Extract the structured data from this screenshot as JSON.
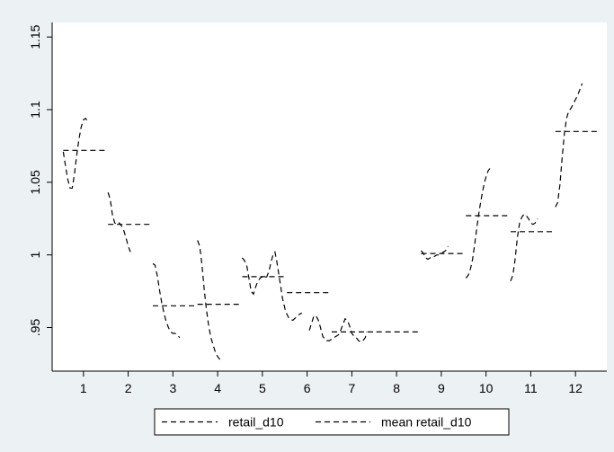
{
  "chart_data": {
    "type": "line",
    "title": "",
    "xlabel": "",
    "ylabel": "",
    "xlim": [
      0.3,
      12.7
    ],
    "ylim": [
      0.92,
      1.16
    ],
    "x_ticks": [
      1,
      2,
      3,
      4,
      5,
      6,
      7,
      8,
      9,
      10,
      11,
      12
    ],
    "x_tick_labels": [
      "1",
      "2",
      "3",
      "4",
      "5",
      "6",
      "7",
      "8",
      "9",
      "10",
      "11",
      "12"
    ],
    "y_ticks": [
      0.95,
      1,
      1.05,
      1.1,
      1.15
    ],
    "y_tick_labels": [
      ".95",
      "1",
      "1.05",
      "1.1",
      "1.15"
    ],
    "grid": false,
    "legend_position": "bottom",
    "series": [
      {
        "name": "retail_d10",
        "style": "dashed",
        "color": "#000000",
        "segments": [
          [
            [
              0.55,
              1.071
            ],
            [
              0.6,
              1.061
            ],
            [
              0.65,
              1.052
            ],
            [
              0.7,
              1.046
            ],
            [
              0.75,
              1.046
            ],
            [
              0.8,
              1.056
            ],
            [
              0.85,
              1.069
            ],
            [
              0.9,
              1.08
            ],
            [
              0.95,
              1.088
            ],
            [
              1.0,
              1.093
            ],
            [
              1.05,
              1.094
            ],
            [
              1.09,
              1.092
            ]
          ],
          [
            [
              1.55,
              1.043
            ],
            [
              1.6,
              1.038
            ],
            [
              1.65,
              1.027
            ],
            [
              1.7,
              1.022
            ],
            [
              1.75,
              1.021
            ],
            [
              1.8,
              1.022
            ],
            [
              1.85,
              1.02
            ],
            [
              1.9,
              1.017
            ],
            [
              1.95,
              1.012
            ],
            [
              2.0,
              1.006
            ],
            [
              2.05,
              1.002
            ]
          ],
          [
            [
              2.55,
              0.994
            ],
            [
              2.6,
              0.993
            ],
            [
              2.65,
              0.986
            ],
            [
              2.7,
              0.976
            ],
            [
              2.75,
              0.967
            ],
            [
              2.8,
              0.96
            ],
            [
              2.85,
              0.954
            ],
            [
              2.9,
              0.95
            ],
            [
              2.95,
              0.947
            ],
            [
              3.0,
              0.946
            ],
            [
              3.05,
              0.946
            ],
            [
              3.1,
              0.945
            ],
            [
              3.15,
              0.943
            ]
          ],
          [
            [
              3.55,
              1.01
            ],
            [
              3.6,
              1.006
            ],
            [
              3.65,
              0.993
            ],
            [
              3.7,
              0.976
            ],
            [
              3.75,
              0.962
            ],
            [
              3.8,
              0.951
            ],
            [
              3.85,
              0.943
            ],
            [
              3.9,
              0.938
            ],
            [
              3.95,
              0.933
            ],
            [
              4.0,
              0.93
            ],
            [
              4.05,
              0.928
            ]
          ],
          [
            [
              4.55,
              0.998
            ],
            [
              4.6,
              0.996
            ],
            [
              4.65,
              0.993
            ],
            [
              4.7,
              0.984
            ],
            [
              4.75,
              0.975
            ],
            [
              4.8,
              0.973
            ],
            [
              4.85,
              0.978
            ],
            [
              4.9,
              0.982
            ],
            [
              4.95,
              0.984
            ],
            [
              5.0,
              0.985
            ],
            [
              5.05,
              0.984
            ],
            [
              5.1,
              0.985
            ],
            [
              5.15,
              0.989
            ],
            [
              5.2,
              0.996
            ],
            [
              5.25,
              1.001
            ],
            [
              5.28,
              1.002
            ],
            [
              5.32,
              0.996
            ],
            [
              5.38,
              0.984
            ],
            [
              5.45,
              0.97
            ],
            [
              5.52,
              0.961
            ],
            [
              5.6,
              0.956
            ],
            [
              5.68,
              0.955
            ],
            [
              5.75,
              0.957
            ],
            [
              5.82,
              0.959
            ],
            [
              5.88,
              0.96
            ]
          ],
          [
            [
              6.05,
              0.948
            ],
            [
              6.1,
              0.953
            ],
            [
              6.15,
              0.958
            ],
            [
              6.2,
              0.958
            ],
            [
              6.25,
              0.955
            ],
            [
              6.3,
              0.95
            ],
            [
              6.35,
              0.944
            ],
            [
              6.42,
              0.941
            ],
            [
              6.5,
              0.941
            ],
            [
              6.55,
              0.942
            ],
            [
              6.6,
              0.943
            ],
            [
              6.7,
              0.945
            ],
            [
              6.75,
              0.948
            ],
            [
              6.8,
              0.952
            ],
            [
              6.85,
              0.956
            ],
            [
              6.9,
              0.955
            ],
            [
              6.95,
              0.951
            ],
            [
              7.0,
              0.946
            ],
            [
              7.05,
              0.944
            ],
            [
              7.1,
              0.943
            ],
            [
              7.15,
              0.941
            ],
            [
              7.2,
              0.94
            ],
            [
              7.25,
              0.941
            ],
            [
              7.3,
              0.943
            ],
            [
              7.33,
              0.947
            ]
          ],
          [
            [
              8.55,
              1.003
            ],
            [
              8.6,
              1.001
            ],
            [
              8.65,
              0.998
            ],
            [
              8.7,
              0.997
            ],
            [
              8.75,
              0.998
            ],
            [
              8.8,
              0.999
            ],
            [
              8.85,
              0.999
            ],
            [
              8.9,
              1.0
            ],
            [
              8.95,
              1.0
            ],
            [
              9.0,
              1.001
            ],
            [
              9.05,
              1.002
            ],
            [
              9.1,
              1.003
            ],
            [
              9.15,
              1.006
            ]
          ],
          [
            [
              9.55,
              0.984
            ],
            [
              9.6,
              0.986
            ],
            [
              9.65,
              0.99
            ],
            [
              9.7,
              0.997
            ],
            [
              9.75,
              1.008
            ],
            [
              9.8,
              1.02
            ],
            [
              9.85,
              1.031
            ],
            [
              9.9,
              1.04
            ],
            [
              9.95,
              1.048
            ],
            [
              10.0,
              1.054
            ],
            [
              10.05,
              1.058
            ],
            [
              10.1,
              1.06
            ],
            [
              10.15,
              1.061
            ]
          ],
          [
            [
              10.55,
              0.982
            ],
            [
              10.6,
              0.986
            ],
            [
              10.65,
              0.997
            ],
            [
              10.7,
              1.012
            ],
            [
              10.75,
              1.022
            ],
            [
              10.8,
              1.026
            ],
            [
              10.85,
              1.028
            ],
            [
              10.9,
              1.027
            ],
            [
              10.95,
              1.025
            ],
            [
              11.0,
              1.022
            ],
            [
              11.05,
              1.021
            ],
            [
              11.1,
              1.022
            ],
            [
              11.15,
              1.025
            ]
          ],
          [
            [
              11.55,
              1.033
            ],
            [
              11.6,
              1.036
            ],
            [
              11.65,
              1.048
            ],
            [
              11.7,
              1.066
            ],
            [
              11.75,
              1.083
            ],
            [
              11.8,
              1.094
            ],
            [
              11.85,
              1.099
            ],
            [
              11.9,
              1.101
            ],
            [
              11.95,
              1.104
            ],
            [
              12.0,
              1.107
            ],
            [
              12.05,
              1.11
            ],
            [
              12.1,
              1.114
            ],
            [
              12.15,
              1.118
            ]
          ]
        ]
      },
      {
        "name": "mean retail_d10",
        "style": "dashed",
        "color": "#000000",
        "segments": [
          [
            [
              0.55,
              1.072
            ],
            [
              1.5,
              1.072
            ]
          ],
          [
            [
              1.55,
              1.021
            ],
            [
              2.5,
              1.021
            ]
          ],
          [
            [
              2.55,
              0.965
            ],
            [
              3.5,
              0.965
            ]
          ],
          [
            [
              3.55,
              0.966
            ],
            [
              4.5,
              0.966
            ]
          ],
          [
            [
              4.55,
              0.985
            ],
            [
              5.5,
              0.985
            ]
          ],
          [
            [
              5.55,
              0.974
            ],
            [
              6.5,
              0.974
            ]
          ],
          [
            [
              6.55,
              0.947
            ],
            [
              7.5,
              0.947
            ]
          ],
          [
            [
              7.55,
              0.947
            ],
            [
              8.5,
              0.947
            ]
          ],
          [
            [
              8.55,
              1.001
            ],
            [
              9.5,
              1.001
            ]
          ],
          [
            [
              9.55,
              1.027
            ],
            [
              10.5,
              1.027
            ]
          ],
          [
            [
              10.55,
              1.016
            ],
            [
              11.5,
              1.016
            ]
          ],
          [
            [
              11.55,
              1.085
            ],
            [
              12.5,
              1.085
            ]
          ]
        ]
      }
    ]
  },
  "colors": {
    "background": "#ecf1f4",
    "plot_background": "#ffffff",
    "line": "#000000"
  }
}
